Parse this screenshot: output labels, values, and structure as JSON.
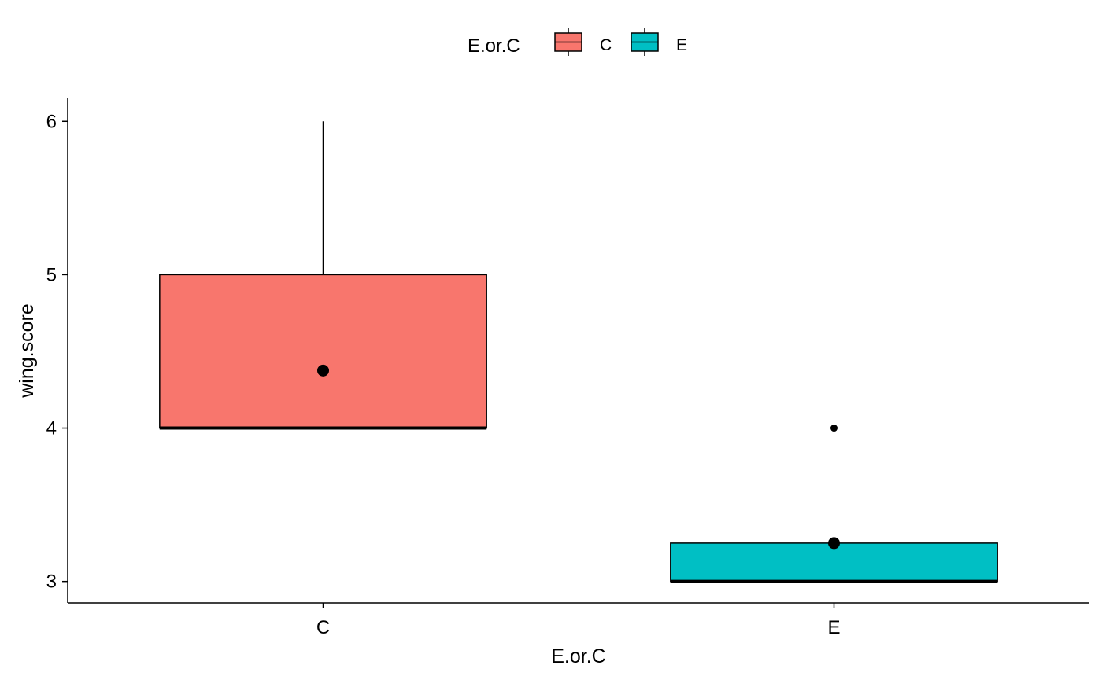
{
  "chart_data": {
    "type": "boxplot",
    "title": "",
    "xlabel": "E.or.C",
    "ylabel": "wing.score",
    "categories": [
      "C",
      "E"
    ],
    "ylim": [
      2.86,
      6.15
    ],
    "y_ticks": [
      3,
      4,
      5,
      6
    ],
    "grid": false,
    "legend": {
      "title": "E.or.C",
      "position": "top",
      "entries": [
        {
          "label": "C",
          "color": "#F8766D"
        },
        {
          "label": "E",
          "color": "#00BFC4"
        }
      ]
    },
    "series": [
      {
        "category": "C",
        "fill": "#F8766D",
        "min": 4,
        "q1": 4,
        "median": 4,
        "q3": 5,
        "max": 6,
        "mean": 4.375,
        "outliers": []
      },
      {
        "category": "E",
        "fill": "#00BFC4",
        "min": 3,
        "q1": 3,
        "median": 3,
        "q3": 3.25,
        "max": 3.25,
        "mean": 3.25,
        "outliers": [
          4
        ]
      }
    ]
  }
}
